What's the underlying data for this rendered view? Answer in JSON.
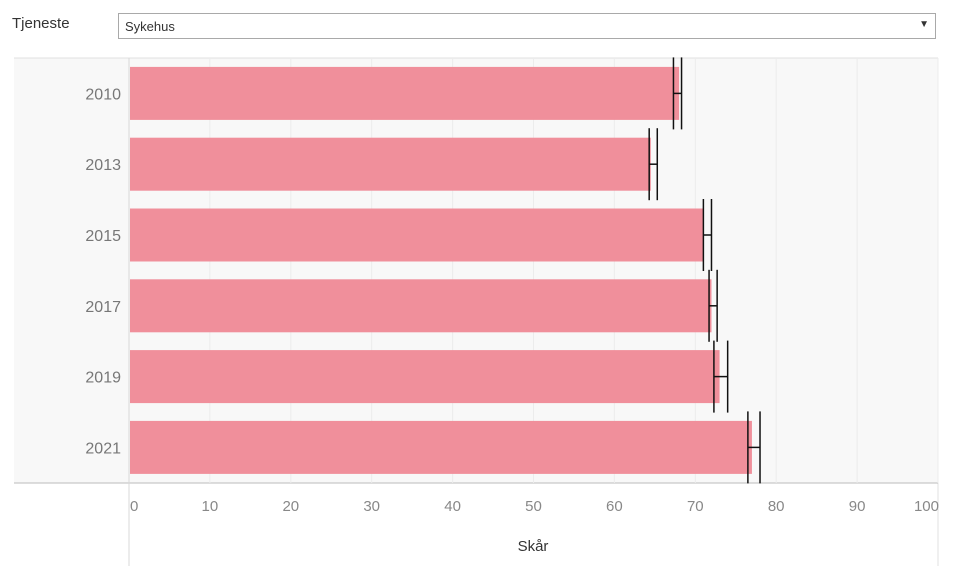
{
  "filter": {
    "label": "Tjeneste",
    "selected": "Sykehus"
  },
  "chart_data": {
    "type": "bar",
    "orientation": "horizontal",
    "categories": [
      "2010",
      "2013",
      "2015",
      "2017",
      "2019",
      "2021"
    ],
    "values": [
      68,
      64.5,
      71,
      72,
      73,
      77
    ],
    "error_bars": [
      {
        "low": 67.3,
        "high": 68.3
      },
      {
        "low": 64.3,
        "high": 65.3
      },
      {
        "low": 71.0,
        "high": 72.0
      },
      {
        "low": 71.7,
        "high": 72.7
      },
      {
        "low": 72.3,
        "high": 74.0
      },
      {
        "low": 76.5,
        "high": 78.0
      }
    ],
    "xlabel": "Skår",
    "ylabel": "",
    "xlim": [
      0,
      100
    ],
    "xticks": [
      "0",
      "10",
      "20",
      "30",
      "40",
      "50",
      "60",
      "70",
      "80",
      "90",
      "100"
    ],
    "bar_color": "#f08f9b",
    "grid": true
  }
}
